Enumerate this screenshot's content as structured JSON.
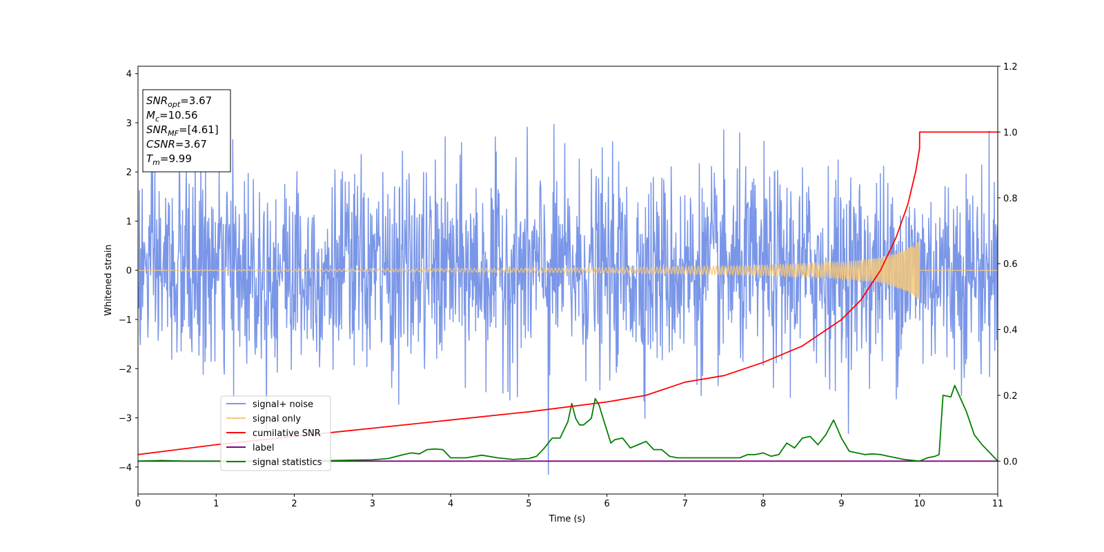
{
  "chart_data": {
    "type": "line",
    "title": "",
    "xlabel": "Time (s)",
    "ylabel_left": "Whitened strain",
    "ylabel_right": "",
    "xlim": [
      0,
      11
    ],
    "ylim_left": [
      -4.55,
      4.15
    ],
    "ylim_right": [
      -0.1,
      1.2
    ],
    "x_ticks": [
      0,
      1,
      2,
      3,
      4,
      5,
      6,
      7,
      8,
      9,
      10,
      11
    ],
    "x_tick_labels": [
      "0",
      "1",
      "2",
      "3",
      "4",
      "5",
      "6",
      "7",
      "8",
      "9",
      "10",
      "11"
    ],
    "y_left_ticks": [
      -4,
      -3,
      -2,
      -1,
      0,
      1,
      2,
      3,
      4
    ],
    "y_left_tick_labels": [
      "−4",
      "−3",
      "−2",
      "−1",
      "0",
      "1",
      "2",
      "3",
      "4"
    ],
    "y_right_ticks": [
      0.0,
      0.2,
      0.4,
      0.6,
      0.8,
      1.0,
      1.2
    ],
    "y_right_tick_labels": [
      "0.0",
      "0.2",
      "0.4",
      "0.6",
      "0.8",
      "1.0",
      "1.2"
    ],
    "grid": false,
    "legend_position": "lower-left",
    "annotation_box": {
      "position": "top-left",
      "lines": [
        {
          "base": "SNR",
          "sub": "opt",
          "value": "=3.67"
        },
        {
          "base": "M",
          "sub": "c",
          "value": "=10.56"
        },
        {
          "base": "SNR",
          "sub": "MF",
          "value": "=[4.61]"
        },
        {
          "base": "CSNR",
          "sub": "",
          "value": "=3.67"
        },
        {
          "base": "T",
          "sub": "m",
          "value": "=9.99"
        }
      ]
    },
    "series": [
      {
        "name": "signal+ noise",
        "axis": "left",
        "color": "#7a96e8",
        "description_values": {
          "kind": "white noise",
          "std_approx": 1.0,
          "max_peak": 3.75,
          "min_trough": -4.15,
          "min_trough_time": 5.25,
          "sample_spacing_s": 0.006
        }
      },
      {
        "name": "signal only",
        "axis": "left",
        "color": "#f5c87a",
        "description_values": {
          "kind": "chirp",
          "merger_time": 10.0,
          "envelope": [
            [
              0,
              0.0
            ],
            [
              3,
              0.03
            ],
            [
              6,
              0.05
            ],
            [
              8,
              0.1
            ],
            [
              9,
              0.17
            ],
            [
              9.5,
              0.25
            ],
            [
              9.8,
              0.4
            ],
            [
              9.95,
              0.55
            ],
            [
              10.0,
              0.6
            ],
            [
              10.01,
              0.0
            ],
            [
              11,
              0.0
            ]
          ]
        }
      },
      {
        "name": "cumilative SNR",
        "axis": "right",
        "color": "#ff0000",
        "x": [
          0,
          1,
          2,
          3,
          4,
          5,
          6,
          6.5,
          7,
          7.5,
          8,
          8.5,
          9,
          9.25,
          9.5,
          9.7,
          9.85,
          9.95,
          10.0,
          10.001,
          11
        ],
        "y": [
          0.02,
          0.05,
          0.075,
          0.1,
          0.125,
          0.15,
          0.18,
          0.2,
          0.24,
          0.26,
          0.3,
          0.35,
          0.43,
          0.49,
          0.58,
          0.68,
          0.78,
          0.88,
          0.95,
          1.0,
          1.0
        ]
      },
      {
        "name": "label",
        "axis": "right",
        "color": "#800080",
        "x": [
          0,
          11
        ],
        "y": [
          0.0,
          0.0
        ]
      },
      {
        "name": "signal statistics",
        "axis": "right",
        "color": "#008000",
        "x": [
          0,
          0.3,
          0.6,
          1.0,
          1.5,
          2.0,
          2.5,
          3.0,
          3.2,
          3.4,
          3.5,
          3.6,
          3.7,
          3.8,
          3.9,
          4.0,
          4.2,
          4.4,
          4.6,
          4.8,
          5.0,
          5.1,
          5.2,
          5.3,
          5.4,
          5.5,
          5.55,
          5.6,
          5.65,
          5.7,
          5.8,
          5.85,
          5.9,
          5.95,
          6.05,
          6.1,
          6.2,
          6.3,
          6.4,
          6.5,
          6.6,
          6.7,
          6.8,
          6.9,
          7.0,
          7.5,
          7.7,
          7.8,
          7.9,
          8.0,
          8.1,
          8.2,
          8.3,
          8.4,
          8.5,
          8.6,
          8.7,
          8.75,
          8.8,
          8.9,
          9.0,
          9.1,
          9.2,
          9.3,
          9.4,
          9.5,
          9.6,
          9.7,
          9.8,
          10.0,
          10.1,
          10.2,
          10.25,
          10.3,
          10.4,
          10.45,
          10.6,
          10.7,
          10.8,
          10.9,
          11.0
        ],
        "y": [
          0.0,
          0.002,
          0.0,
          0.0,
          0.0,
          0.0,
          0.002,
          0.004,
          0.008,
          0.02,
          0.025,
          0.022,
          0.035,
          0.037,
          0.035,
          0.01,
          0.01,
          0.018,
          0.01,
          0.005,
          0.008,
          0.015,
          0.04,
          0.07,
          0.07,
          0.12,
          0.175,
          0.13,
          0.11,
          0.11,
          0.13,
          0.19,
          0.17,
          0.13,
          0.055,
          0.065,
          0.07,
          0.04,
          0.05,
          0.06,
          0.035,
          0.035,
          0.015,
          0.01,
          0.01,
          0.01,
          0.01,
          0.02,
          0.02,
          0.025,
          0.015,
          0.02,
          0.055,
          0.04,
          0.07,
          0.075,
          0.05,
          0.065,
          0.08,
          0.125,
          0.07,
          0.03,
          0.025,
          0.02,
          0.022,
          0.02,
          0.015,
          0.01,
          0.005,
          0.0,
          0.01,
          0.015,
          0.02,
          0.2,
          0.195,
          0.23,
          0.15,
          0.08,
          0.05,
          0.025,
          0.0
        ]
      }
    ]
  }
}
